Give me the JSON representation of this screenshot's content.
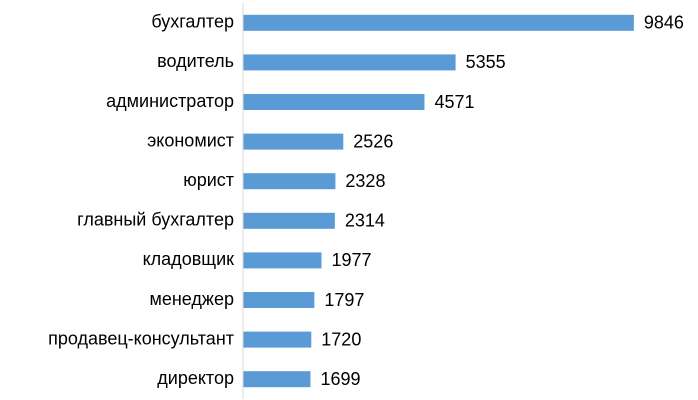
{
  "chart_data": {
    "type": "bar",
    "orientation": "horizontal",
    "categories": [
      "бухгалтер",
      "водитель",
      "администратор",
      "экономист",
      "юрист",
      "главный бухгалтер",
      "кладовщик",
      "менеджер",
      "продавец-консультант",
      "директор"
    ],
    "values": [
      9846,
      5355,
      4571,
      2526,
      2328,
      2314,
      1977,
      1797,
      1720,
      1699
    ],
    "color": "#5b9bd5",
    "xlim": [
      0,
      10000
    ]
  }
}
